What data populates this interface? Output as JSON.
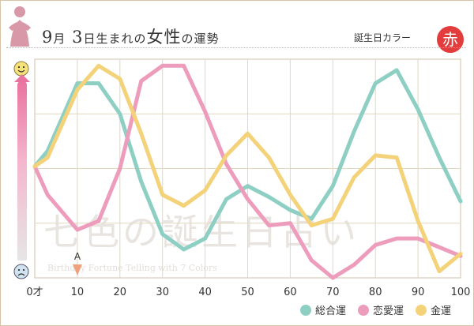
{
  "header": {
    "title_month": "9",
    "title_month_unit": "月",
    "title_day": "3",
    "title_rest": "日生まれの",
    "title_gender": "女性",
    "title_tail": "の運勢",
    "birthday_color_label": "誕生日カラー",
    "birthday_color_name": "赤",
    "birthday_color_hex": "#e23c3c"
  },
  "watermark": {
    "main": "七色の誕生日占い",
    "sub": "Birthday Fortune Telling with 7 Colors"
  },
  "marker": {
    "label": "A",
    "age": 10
  },
  "chart_data": {
    "type": "line",
    "x": [
      0,
      3,
      10,
      15,
      20,
      25,
      30,
      35,
      40,
      45,
      50,
      55,
      60,
      65,
      70,
      75,
      80,
      85,
      90,
      95,
      100
    ],
    "xticks": [
      {
        "value": 0,
        "label": "0才"
      },
      {
        "value": 10,
        "label": "10"
      },
      {
        "value": 20,
        "label": "20"
      },
      {
        "value": 30,
        "label": "30"
      },
      {
        "value": 40,
        "label": "40"
      },
      {
        "value": 50,
        "label": "50"
      },
      {
        "value": 60,
        "label": "60"
      },
      {
        "value": 70,
        "label": "70"
      },
      {
        "value": 80,
        "label": "80"
      },
      {
        "value": 90,
        "label": "90"
      },
      {
        "value": 100,
        "label": "100"
      }
    ],
    "xlim": [
      0,
      100
    ],
    "ylim": [
      0,
      100
    ],
    "grid": true,
    "yaxis_top_icon": "smile-icon",
    "yaxis_bottom_icon": "sad-icon",
    "legend_position": "bottom-right",
    "series": [
      {
        "name": "総合運",
        "color": "#8ecfc4",
        "values": [
          51,
          58,
          89,
          89,
          75,
          44,
          20,
          13,
          18,
          36,
          42,
          37,
          31,
          27,
          42,
          67,
          89,
          95,
          77,
          55,
          35
        ]
      },
      {
        "name": "恋愛運",
        "color": "#ee9cbc",
        "values": [
          51,
          38,
          22,
          26,
          50,
          90,
          97,
          97,
          76,
          52,
          36,
          24,
          25,
          8,
          0,
          6,
          15,
          18,
          18,
          14,
          10
        ]
      },
      {
        "name": "金運",
        "color": "#f3d27a",
        "values": [
          51,
          55,
          86,
          97,
          91,
          66,
          38,
          33,
          40,
          56,
          66,
          55,
          38,
          24,
          27,
          46,
          56,
          55,
          26,
          3,
          11
        ]
      }
    ]
  }
}
